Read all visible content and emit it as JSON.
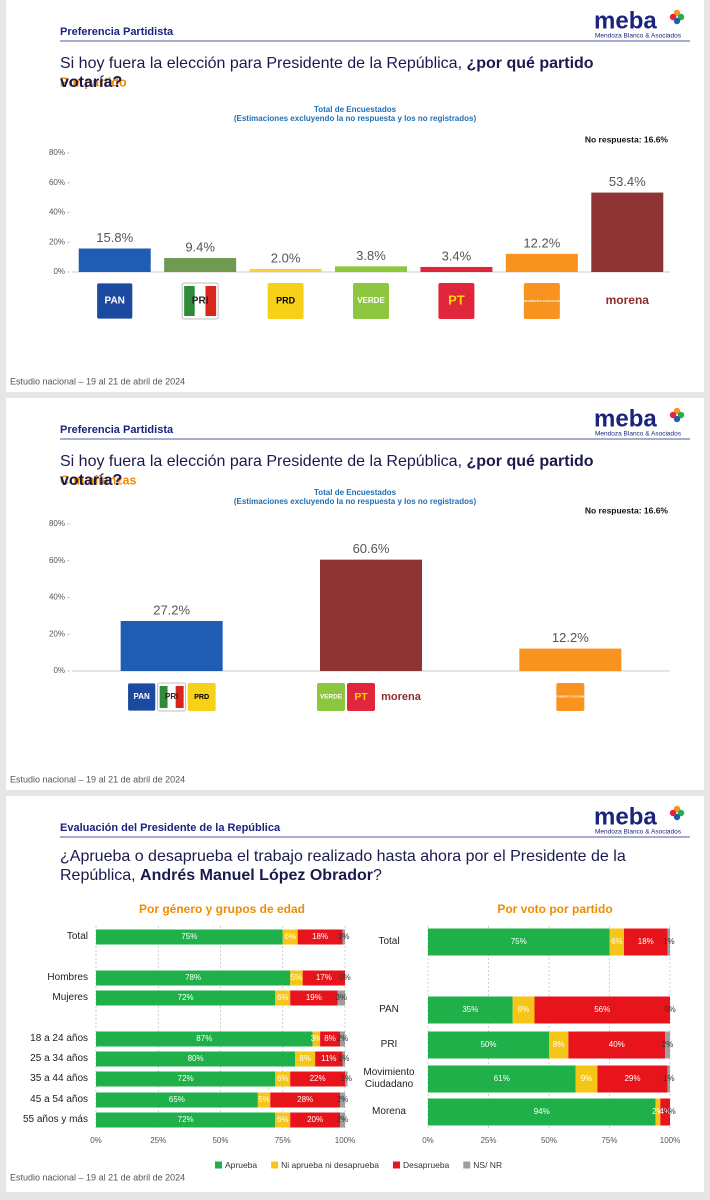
{
  "brand": {
    "name": "meba",
    "tagline": "Mendoza Blanco & Asociados"
  },
  "chart_data": [
    {
      "type": "bar",
      "section": "Preferencia Partidista",
      "question": [
        "Si hoy fuera la elección para Presidente de la República, ",
        "¿por qué partido votaría?"
      ],
      "subtitle": "Por partido",
      "title": "Total de Encuestados",
      "note": "(Estimaciones excluyendo la no respuesta y los no registrados)",
      "annotation": "No respuesta: 16.6%",
      "categories": [
        "PAN",
        "PRI",
        "PRD",
        "VERDE",
        "PT",
        "MOVIMIENTO CIUDADANO",
        "morena"
      ],
      "values": [
        15.8,
        9.4,
        2.0,
        3.8,
        3.4,
        12.2,
        53.4
      ],
      "value_labels": [
        "15.8%",
        "9.4%",
        "2.0%",
        "3.8%",
        "3.4%",
        "12.2%",
        "53.4%"
      ],
      "colors": [
        "#1f5cb4",
        "#6f9a52",
        "#f6d330",
        "#8dc63f",
        "#e0263a",
        "#f7931e",
        "#8e3434"
      ],
      "ylim": [
        0,
        80
      ],
      "yticks": [
        {
          "value": 0,
          "label": "0%"
        },
        {
          "value": 20,
          "label": "20%"
        },
        {
          "value": 40,
          "label": "40%"
        },
        {
          "value": 60,
          "label": "60%"
        },
        {
          "value": 80,
          "label": "80%"
        }
      ],
      "source": "Estudio nacional – 19 al 21 de abril de 2024"
    },
    {
      "type": "bar",
      "section": "Preferencia Partidista",
      "question": [
        "Si hoy fuera la elección para Presidente de la República, ",
        "¿por qué partido votaría?"
      ],
      "subtitle": "Con alianzas",
      "title": "Total de Encuestados",
      "note": "(Estimaciones excluyendo la no respuesta y los no registrados)",
      "annotation": "No respuesta: 16.6%",
      "categories": [
        [
          "PAN",
          "PRI",
          "PRD"
        ],
        [
          "VERDE",
          "PT",
          "morena"
        ],
        [
          "MOVIMIENTO CIUDADANO"
        ]
      ],
      "values": [
        27.2,
        60.6,
        12.2
      ],
      "value_labels": [
        "27.2%",
        "60.6%",
        "12.2%"
      ],
      "colors": [
        "#1f5cb4",
        "#8e3434",
        "#f7931e"
      ],
      "ylim": [
        0,
        80
      ],
      "yticks": [
        {
          "value": 0,
          "label": "0%"
        },
        {
          "value": 20,
          "label": "20%"
        },
        {
          "value": 40,
          "label": "40%"
        },
        {
          "value": 60,
          "label": "60%"
        },
        {
          "value": 80,
          "label": "80%"
        }
      ],
      "source": "Estudio nacional – 19 al 21 de abril de 2024"
    },
    {
      "type": "stacked_bar_h",
      "section": "Evaluación del Presidente de la República",
      "question": [
        "¿Aprueba o desaprueba el trabajo realizado hasta ahora por el Presidente de la República, ",
        "Andrés Manuel López Obrador",
        "?"
      ],
      "title": "Por género y grupos de edad",
      "categories": [
        "Total",
        "Hombres",
        "Mujeres",
        "18 a 24 años",
        "25 a 34 años",
        "35 a 44 años",
        "45 a 54 años",
        "55 años y más"
      ],
      "series": [
        {
          "name": "Aprueba",
          "color": "#1fb04a",
          "values": [
            75,
            78,
            72,
            87,
            80,
            72,
            65,
            72
          ],
          "value_labels": [
            "75%",
            "78%",
            "72%",
            "87%",
            "80%",
            "72%",
            "65%",
            "72%"
          ]
        },
        {
          "name": "Ni aprueba ni desaprueba",
          "color": "#f5c518",
          "values": [
            6,
            5,
            6,
            3,
            8,
            6,
            5,
            6
          ],
          "value_labels": [
            "6%",
            "5%",
            "6%",
            "3%",
            "8%",
            "6%",
            "5%",
            "6%"
          ]
        },
        {
          "name": "Desaprueba",
          "color": "#e8141b",
          "values": [
            18,
            17,
            19,
            8,
            11,
            22,
            28,
            20
          ],
          "value_labels": [
            "18%",
            "17%",
            "19%",
            "8%",
            "11%",
            "22%",
            "28%",
            "20%"
          ]
        },
        {
          "name": "NS/ NR",
          "color": "#9e9e9e",
          "values": [
            1,
            0,
            3,
            2,
            1,
            1,
            2,
            2
          ],
          "value_labels": [
            "1%",
            "0%",
            "3%",
            "2%",
            "1%",
            "1%",
            "2%",
            "2%"
          ]
        }
      ],
      "xlim": [
        0,
        100
      ],
      "xticks": [
        {
          "value": 0,
          "label": "0%"
        },
        {
          "value": 25,
          "label": "25%"
        },
        {
          "value": 50,
          "label": "50%"
        },
        {
          "value": 75,
          "label": "75%"
        },
        {
          "value": 100,
          "label": "100%"
        }
      ],
      "grid": true,
      "legend": "bottom",
      "source": "Estudio nacional – 19 al 21 de abril de 2024"
    },
    {
      "type": "stacked_bar_h",
      "title": "Por voto por partido",
      "categories": [
        "Total",
        "PAN",
        "PRI",
        "Movimiento Ciudadano",
        "Morena"
      ],
      "series": [
        {
          "color": "#1fb04a",
          "values": [
            75,
            35,
            50,
            61,
            94
          ],
          "value_labels": [
            "75%",
            "35%",
            "50%",
            "61%",
            "94%"
          ]
        },
        {
          "color": "#f5c518",
          "values": [
            6,
            9,
            8,
            9,
            2
          ],
          "value_labels": [
            "6%",
            "9%",
            "8%",
            "9%",
            "2%"
          ]
        },
        {
          "color": "#e8141b",
          "values": [
            18,
            56,
            40,
            29,
            4
          ],
          "value_labels": [
            "18%",
            "56%",
            "40%",
            "29%",
            "4%"
          ]
        },
        {
          "color": "#9e9e9e",
          "values": [
            1,
            0,
            2,
            1,
            0
          ],
          "value_labels": [
            "1%",
            "0%",
            "2%",
            "1%",
            "0%"
          ]
        }
      ],
      "xlim": [
        0,
        100
      ],
      "xticks": [
        {
          "value": 0,
          "label": "0%"
        },
        {
          "value": 25,
          "label": "25%"
        },
        {
          "value": 50,
          "label": "50%"
        },
        {
          "value": 75,
          "label": "75%"
        },
        {
          "value": 100,
          "label": "100%"
        }
      ],
      "grid": true
    }
  ]
}
